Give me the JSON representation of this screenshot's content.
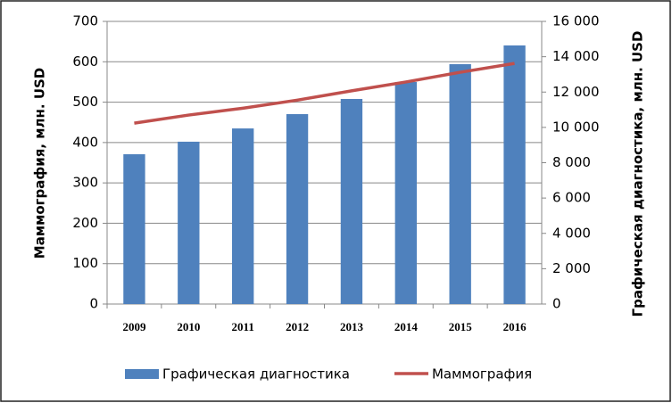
{
  "chart_data": {
    "type": "bar",
    "categories": [
      "2009",
      "2010",
      "2011",
      "2012",
      "2013",
      "2014",
      "2015",
      "2016"
    ],
    "series": [
      {
        "name": "Графическая диагностика",
        "color": "#4f81bd",
        "axis": "y2",
        "type": "bar",
        "values": [
          8480,
          9190,
          9940,
          10750,
          11610,
          12570,
          13580,
          14640
        ]
      },
      {
        "name": "Маммография",
        "color": "#c0504d",
        "axis": "y",
        "type": "line",
        "values": [
          448,
          468,
          485,
          505,
          528,
          550,
          574,
          596
        ]
      }
    ],
    "ylabel": "Маммография, млн. USD",
    "y2label": "Графическая диагностика, млн. USD",
    "ylim": [
      0,
      700
    ],
    "yticks": [
      0,
      100,
      200,
      300,
      400,
      500,
      600,
      700
    ],
    "y2lim": [
      0,
      16000
    ],
    "y2ticks": [
      0,
      {
        "value": 2000,
        "label": "2 000"
      },
      {
        "value": 4000,
        "label": "4 000"
      },
      {
        "value": 6000,
        "label": "6 000"
      },
      {
        "value": 8000,
        "label": "8 000"
      },
      {
        "value": 10000,
        "label": "10 000"
      },
      {
        "value": 12000,
        "label": "12 000"
      },
      {
        "value": 14000,
        "label": "14 000"
      },
      {
        "value": 16000,
        "label": "16 000"
      }
    ],
    "grid": true,
    "legend": "bottom"
  }
}
